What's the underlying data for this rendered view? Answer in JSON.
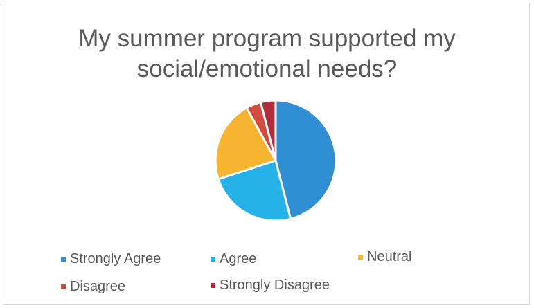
{
  "chart_data": {
    "type": "pie",
    "title_lines": [
      "My summer program supported my",
      "social/emotional needs?"
    ],
    "categories": [
      "Strongly Agree",
      "Agree",
      "Neutral",
      "Disagree",
      "Strongly Disagree"
    ],
    "values": [
      46,
      24,
      22,
      4,
      4
    ],
    "colors": [
      "#2f8fd2",
      "#26b1e8",
      "#f7b431",
      "#d44a3f",
      "#b22d3b"
    ],
    "legend": "bottom"
  }
}
